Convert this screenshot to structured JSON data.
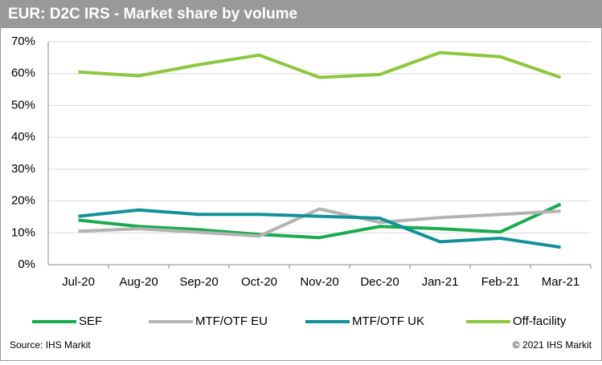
{
  "chart_data": {
    "type": "line",
    "title": "EUR: D2C IRS - Market share by volume",
    "categories": [
      "Jul-20",
      "Aug-20",
      "Sep-20",
      "Oct-20",
      "Nov-20",
      "Dec-20",
      "Jan-21",
      "Feb-21",
      "Mar-21"
    ],
    "series": [
      {
        "name": "SEF",
        "color": "#1aab4f",
        "values": [
          14,
          12,
          11,
          9.5,
          8.5,
          12,
          11.3,
          10.3,
          19
        ]
      },
      {
        "name": "MTF/OTF EU",
        "color": "#b3b3b3",
        "values": [
          10.5,
          11.3,
          10.2,
          9,
          17.5,
          13.3,
          14.8,
          15.8,
          16.8
        ]
      },
      {
        "name": "MTF/OTF UK",
        "color": "#139199",
        "values": [
          15.2,
          17.2,
          15.8,
          15.8,
          15.2,
          14.6,
          7.2,
          8.3,
          5.5
        ]
      },
      {
        "name": "Off-facility",
        "color": "#8dc63f",
        "values": [
          60.5,
          59.3,
          62.8,
          65.8,
          58.8,
          59.7,
          66.6,
          65.3,
          58.8
        ]
      }
    ],
    "ylim": [
      0,
      70
    ],
    "yticks": [
      {
        "value": 0,
        "label": "0%"
      },
      {
        "value": 10,
        "label": "10%"
      },
      {
        "value": 20,
        "label": "20%"
      },
      {
        "value": 30,
        "label": "30%"
      },
      {
        "value": 40,
        "label": "40%"
      },
      {
        "value": 50,
        "label": "50%"
      },
      {
        "value": 60,
        "label": "60%"
      },
      {
        "value": 70,
        "label": "70%"
      }
    ],
    "grid": true,
    "legend": "bottom",
    "source": "Source: IHS Markit",
    "copyright": "© 2021 IHS Markit"
  }
}
